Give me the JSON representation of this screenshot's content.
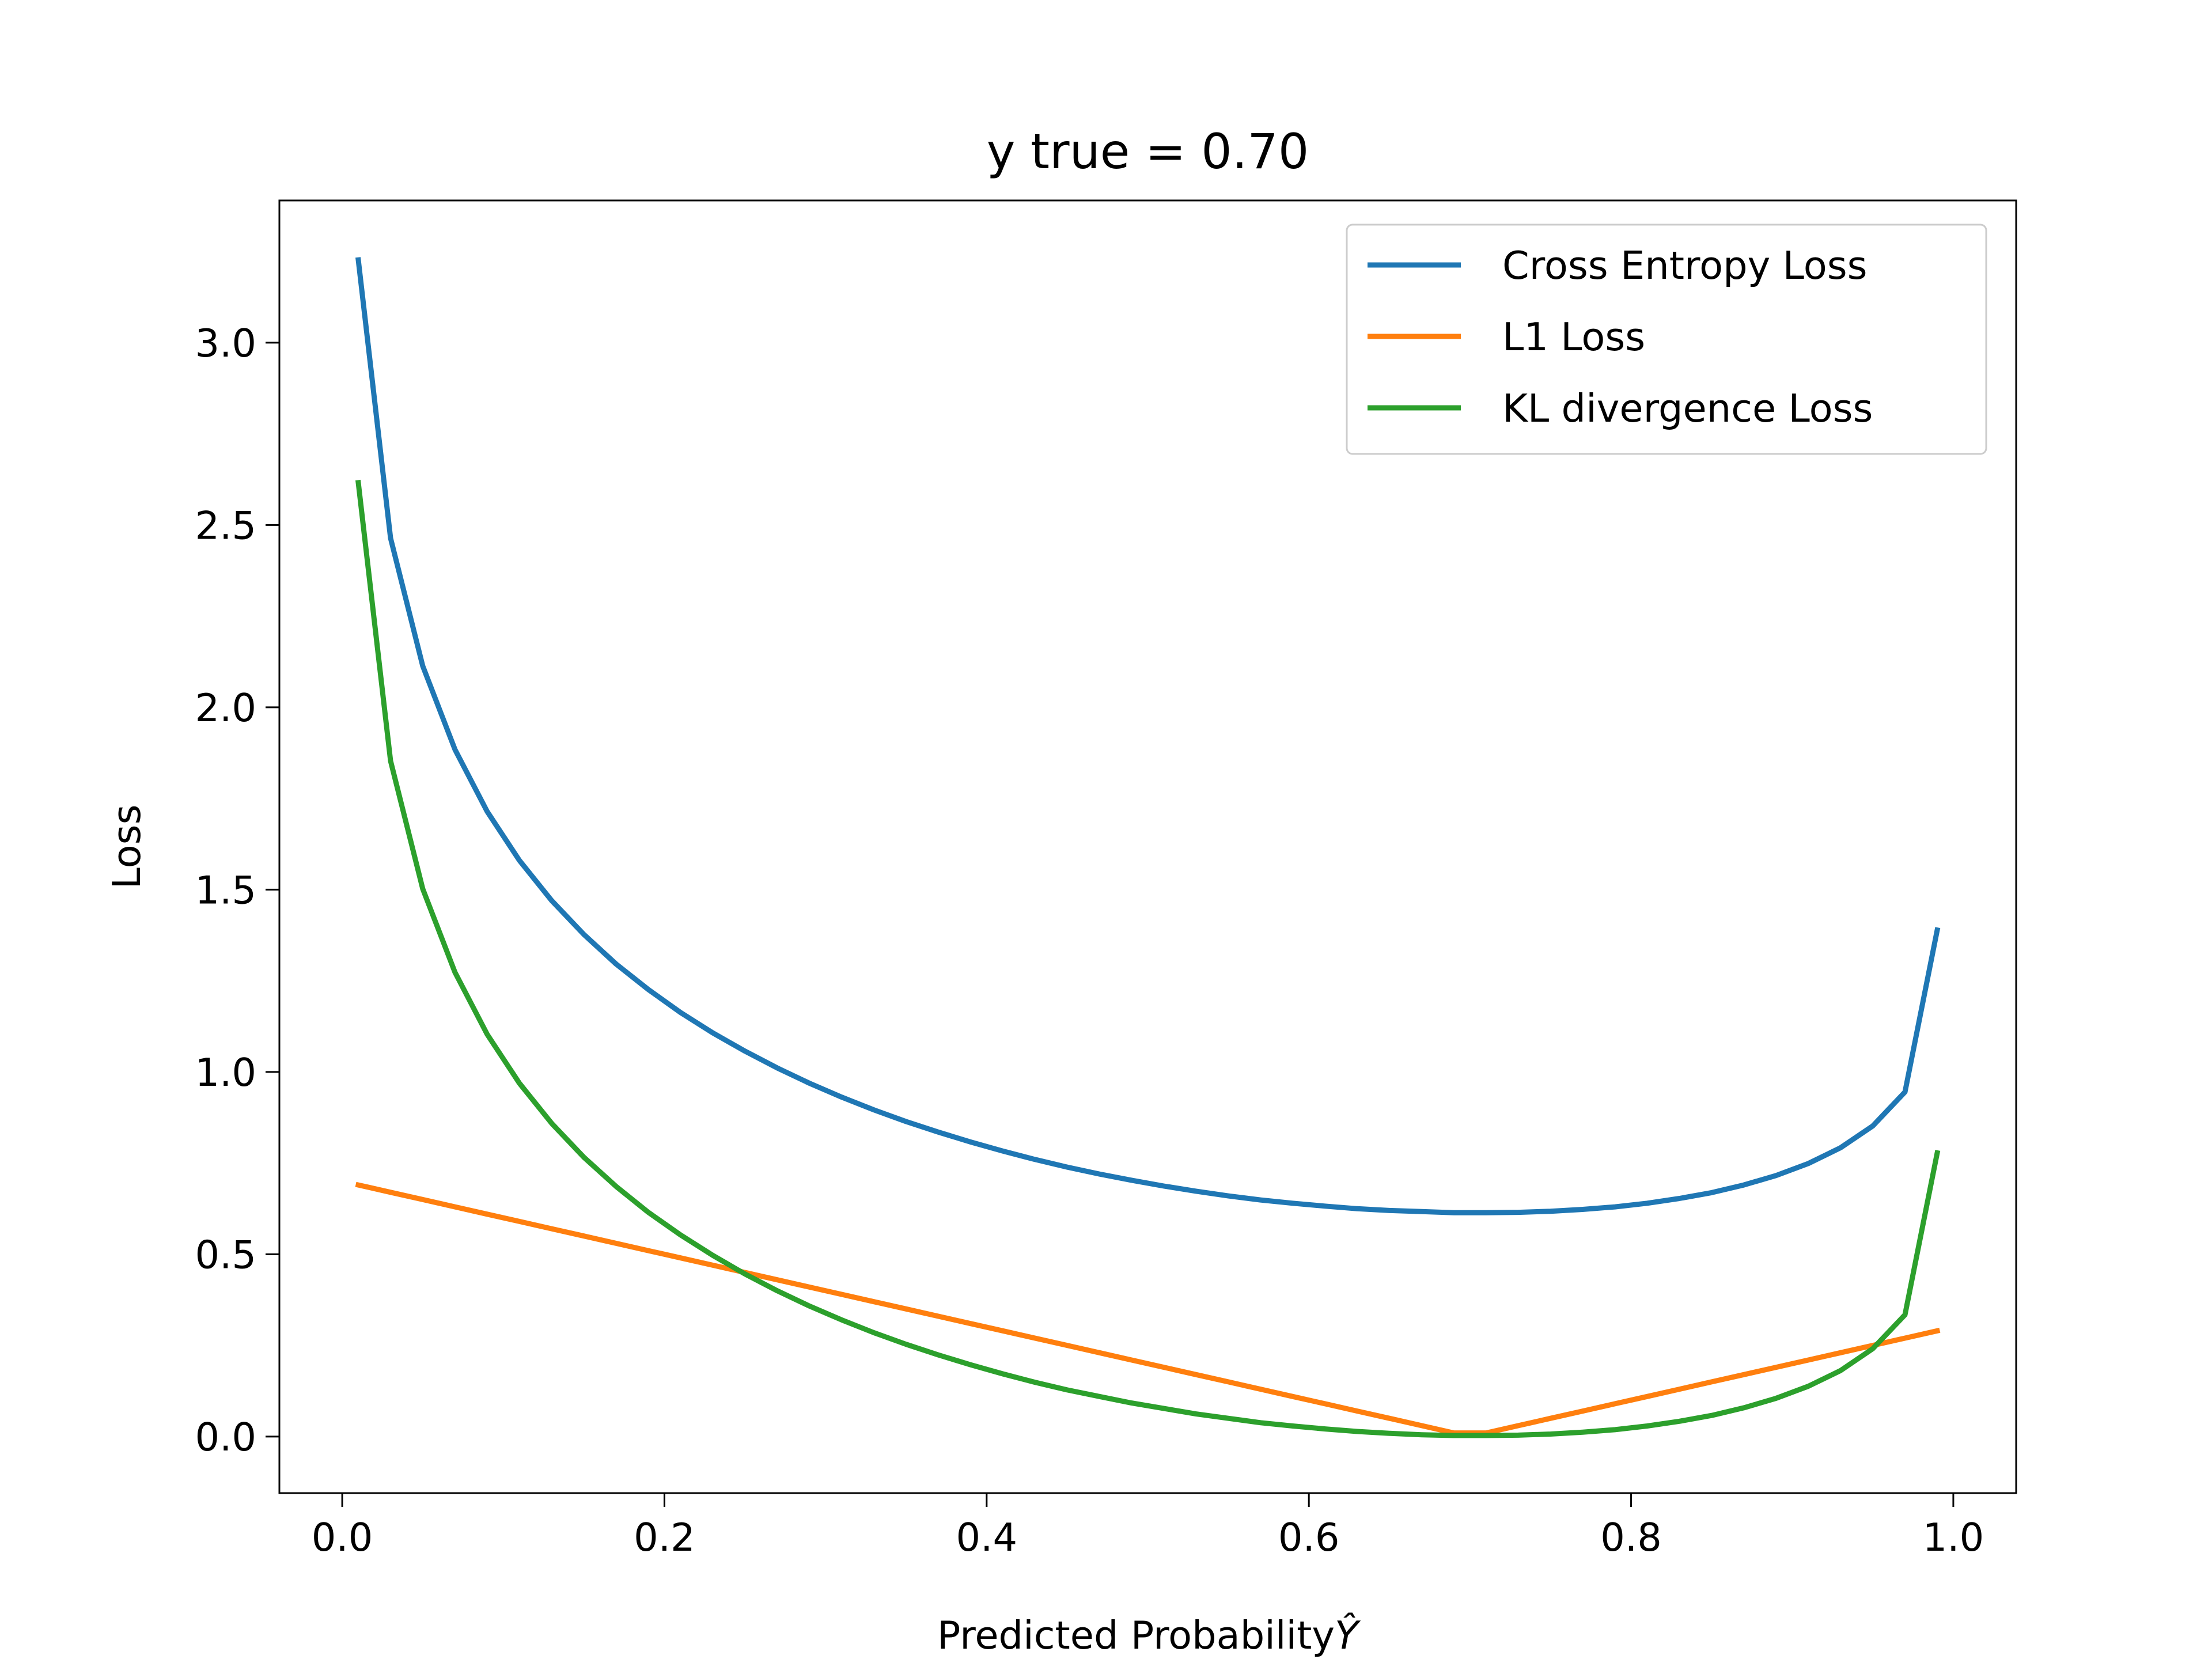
{
  "chart_data": {
    "type": "line",
    "title": "y true = 0.70",
    "xlabel": "Predicted Probability",
    "xlabel_symbol": "Ŷ",
    "ylabel": "Loss",
    "xlim": [
      -0.039,
      1.039
    ],
    "ylim": [
      -0.155,
      3.39
    ],
    "xticks": [
      0.0,
      0.2,
      0.4,
      0.6,
      0.8,
      1.0
    ],
    "xtick_labels": [
      "0.0",
      "0.2",
      "0.4",
      "0.6",
      "0.8",
      "1.0"
    ],
    "yticks": [
      0.0,
      0.5,
      1.0,
      1.5,
      2.0,
      2.5,
      3.0
    ],
    "ytick_labels": [
      "0.0",
      "0.5",
      "1.0",
      "1.5",
      "2.0",
      "2.5",
      "3.0"
    ],
    "grid": false,
    "legend_position": "top-right",
    "x": [
      0.01,
      0.03,
      0.05,
      0.07,
      0.09,
      0.11,
      0.13,
      0.15,
      0.17,
      0.19,
      0.21,
      0.23,
      0.25,
      0.27,
      0.29,
      0.31,
      0.33,
      0.35,
      0.37,
      0.39,
      0.41,
      0.43,
      0.45,
      0.47,
      0.49,
      0.51,
      0.53,
      0.55,
      0.57,
      0.59,
      0.61,
      0.63,
      0.65,
      0.67,
      0.69,
      0.71,
      0.73,
      0.75,
      0.77,
      0.79,
      0.81,
      0.83,
      0.85,
      0.87,
      0.89,
      0.91,
      0.93,
      0.95,
      0.97,
      0.99
    ],
    "series": [
      {
        "name": "Cross Entropy Loss",
        "color": "#1f77b4",
        "values": [
          3.227,
          2.464,
          2.113,
          1.884,
          1.714,
          1.58,
          1.47,
          1.377,
          1.296,
          1.226,
          1.163,
          1.107,
          1.057,
          1.011,
          0.969,
          0.931,
          0.896,
          0.864,
          0.835,
          0.808,
          0.783,
          0.76,
          0.739,
          0.72,
          0.703,
          0.687,
          0.673,
          0.66,
          0.649,
          0.64,
          0.632,
          0.625,
          0.62,
          0.617,
          0.614,
          0.614,
          0.615,
          0.618,
          0.623,
          0.63,
          0.64,
          0.653,
          0.669,
          0.69,
          0.716,
          0.749,
          0.792,
          0.852,
          0.945,
          1.389
        ]
      },
      {
        "name": "L1 Loss",
        "color": "#ff7f0e",
        "values": [
          0.69,
          0.67,
          0.65,
          0.63,
          0.61,
          0.59,
          0.57,
          0.55,
          0.53,
          0.51,
          0.49,
          0.47,
          0.45,
          0.43,
          0.41,
          0.39,
          0.37,
          0.35,
          0.33,
          0.31,
          0.29,
          0.27,
          0.25,
          0.23,
          0.21,
          0.19,
          0.17,
          0.15,
          0.13,
          0.11,
          0.09,
          0.07,
          0.05,
          0.03,
          0.01,
          0.01,
          0.03,
          0.05,
          0.07,
          0.09,
          0.11,
          0.13,
          0.15,
          0.17,
          0.19,
          0.21,
          0.23,
          0.25,
          0.27,
          0.29
        ]
      },
      {
        "name": "KL divergence Loss",
        "color": "#2ca02c",
        "values": [
          2.616,
          1.853,
          1.502,
          1.273,
          1.103,
          0.969,
          0.859,
          0.766,
          0.686,
          0.615,
          0.553,
          0.497,
          0.446,
          0.4,
          0.358,
          0.32,
          0.285,
          0.253,
          0.224,
          0.197,
          0.172,
          0.149,
          0.128,
          0.11,
          0.092,
          0.077,
          0.062,
          0.05,
          0.038,
          0.029,
          0.021,
          0.014,
          0.009,
          0.005,
          0.003,
          0.003,
          0.004,
          0.007,
          0.012,
          0.019,
          0.029,
          0.042,
          0.058,
          0.079,
          0.105,
          0.138,
          0.181,
          0.241,
          0.334,
          0.778
        ]
      }
    ]
  }
}
